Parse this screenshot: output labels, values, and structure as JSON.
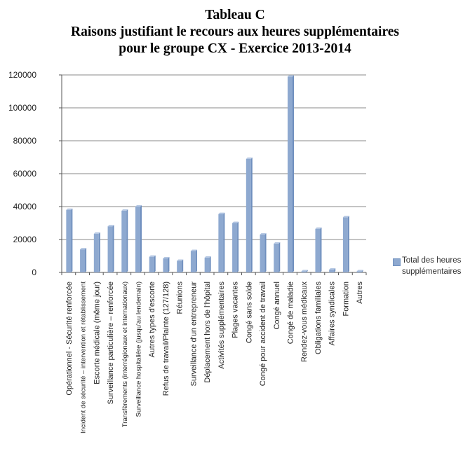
{
  "chart_data": {
    "type": "bar",
    "title": [
      "Tableau C",
      "Raisons justifiant le recours aux heures supplémentaires",
      "pour le groupe CX - Exercice 2013-2014"
    ],
    "categories": [
      "Opérationnel - Sécurité renforcée",
      "Incident de sécurité – intervention et rétablissement",
      "Escorte médicale (même jour)",
      "Surveillance particulière – renforcée",
      "Transfèrements (interrégionaux et internationaux)",
      "Surveillance hospitalière (jusqu'au lendemain)",
      "Autres types d'escorte",
      "Refus de travail/Plainte (127/128)",
      "Réunions",
      "Surveillance d'un entrepreneur",
      "Déplacement hors de l'hôpital",
      "Activités supplémentaires",
      "Plages vacantes",
      "Congé sans solde",
      "Congé pour accident de travail",
      "Congé annuel",
      "Congé de maladie",
      "Rendez-vous médicaux",
      "Obligations familiales",
      "Affaires syndicales",
      "Formation",
      "Autres"
    ],
    "series": [
      {
        "name": "Total des heures supplémentaires",
        "values": [
          38000,
          14000,
          23500,
          28000,
          37500,
          40000,
          9500,
          8500,
          7000,
          13000,
          9000,
          35500,
          30000,
          69000,
          23000,
          17500,
          119000,
          700,
          26500,
          1700,
          33500,
          700
        ]
      }
    ],
    "ylim": [
      0,
      120000
    ],
    "yticks": [
      "0",
      "20000",
      "40000",
      "60000",
      "80000",
      "100000",
      "120000"
    ],
    "grid": true,
    "legend": "right",
    "bar_color": "#8ea9d0",
    "bar_shade": "#6f8fbe"
  }
}
